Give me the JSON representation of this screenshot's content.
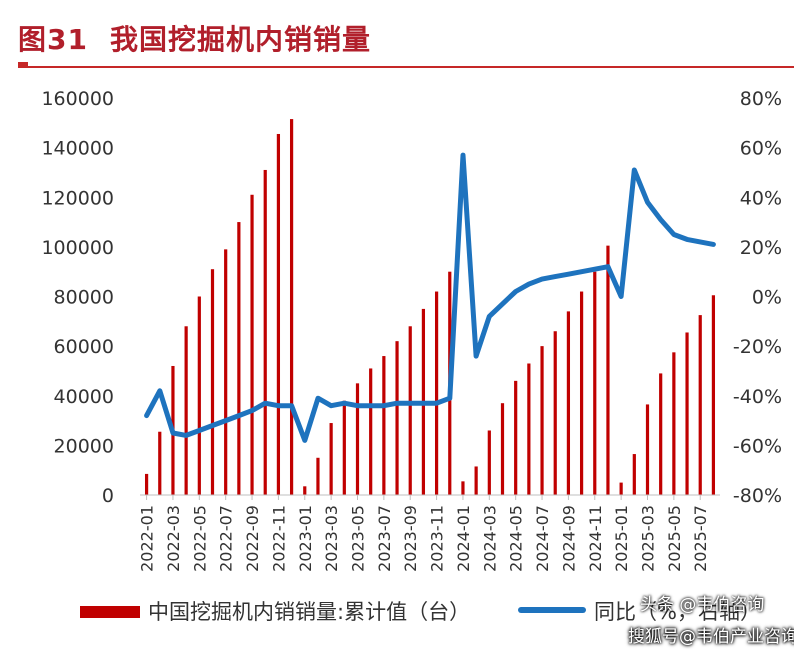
{
  "header": {
    "figure_no": "图31",
    "title": "我国挖掘机内销销量"
  },
  "chart_data": {
    "type": "bar+line",
    "title": "我国挖掘机内销销量",
    "categories": [
      "2022-01",
      "2022-02",
      "2022-03",
      "2022-04",
      "2022-05",
      "2022-06",
      "2022-07",
      "2022-08",
      "2022-09",
      "2022-10",
      "2022-11",
      "2022-12",
      "2023-01",
      "2023-02",
      "2023-03",
      "2023-04",
      "2023-05",
      "2023-06",
      "2023-07",
      "2023-08",
      "2023-09",
      "2023-10",
      "2023-11",
      "2023-12",
      "2024-01",
      "2024-02",
      "2024-03",
      "2024-04",
      "2024-05",
      "2024-06",
      "2024-07",
      "2024-08",
      "2024-09",
      "2024-10",
      "2024-11",
      "2024-12",
      "2025-01",
      "2025-02",
      "2025-03",
      "2025-04",
      "2025-05",
      "2025-06",
      "2025-07",
      "2025-08"
    ],
    "x_tick_labels": [
      "2022-01",
      "2022-03",
      "2022-05",
      "2022-07",
      "2022-09",
      "2022-11",
      "2023-01",
      "2023-03",
      "2023-05",
      "2023-07",
      "2023-09",
      "2023-11",
      "2024-01",
      "2024-03",
      "2024-05",
      "2024-07",
      "2024-09",
      "2024-11",
      "2025-01",
      "2025-03",
      "2025-05",
      "2025-07"
    ],
    "series": [
      {
        "name": "中国挖掘机内销销量:累计值（台）",
        "axis": "left",
        "kind": "bar",
        "color": "#c00000",
        "values": [
          8500,
          25500,
          52000,
          68000,
          80000,
          91000,
          99000,
          110000,
          121000,
          131000,
          145500,
          151500,
          3500,
          15000,
          29000,
          38000,
          45000,
          51000,
          56000,
          62000,
          68000,
          75000,
          82000,
          90000,
          5500,
          11500,
          26000,
          37000,
          46000,
          53000,
          60000,
          66000,
          74000,
          82000,
          90000,
          100500,
          5000,
          16500,
          36500,
          49000,
          57500,
          65500,
          72500,
          80500
        ]
      },
      {
        "name": "同比（%，右轴）",
        "axis": "right",
        "kind": "line",
        "color": "#1e73be",
        "values": [
          -48,
          -38,
          -55,
          -56,
          -54,
          -52,
          -50,
          -48,
          -46,
          -43,
          -44,
          -44,
          -58,
          -41,
          -44,
          -43,
          -44,
          -44,
          -44,
          -43,
          -43,
          -43,
          -43,
          -41,
          57,
          -24,
          -8,
          -3,
          2,
          5,
          7,
          8,
          9,
          10,
          11,
          12,
          0,
          51,
          38,
          31,
          25,
          23,
          22,
          21
        ]
      }
    ],
    "y_left": {
      "min": 0,
      "max": 160000,
      "ticks": [
        "0",
        "20000",
        "40000",
        "60000",
        "80000",
        "100000",
        "120000",
        "140000",
        "160000"
      ]
    },
    "y_right": {
      "min": -80,
      "max": 80,
      "ticks": [
        "-80%",
        "-60%",
        "-40%",
        "-20%",
        "0%",
        "20%",
        "40%",
        "60%",
        "80%"
      ]
    },
    "legend_position": "bottom"
  },
  "legend": {
    "bar_label": "中国挖掘机内销销量:累计值（台）",
    "line_label": "同比（%，右轴）"
  },
  "watermark": {
    "line1": "头条 @韦伯咨询",
    "line2": "搜狐号@韦伯产业咨询"
  }
}
